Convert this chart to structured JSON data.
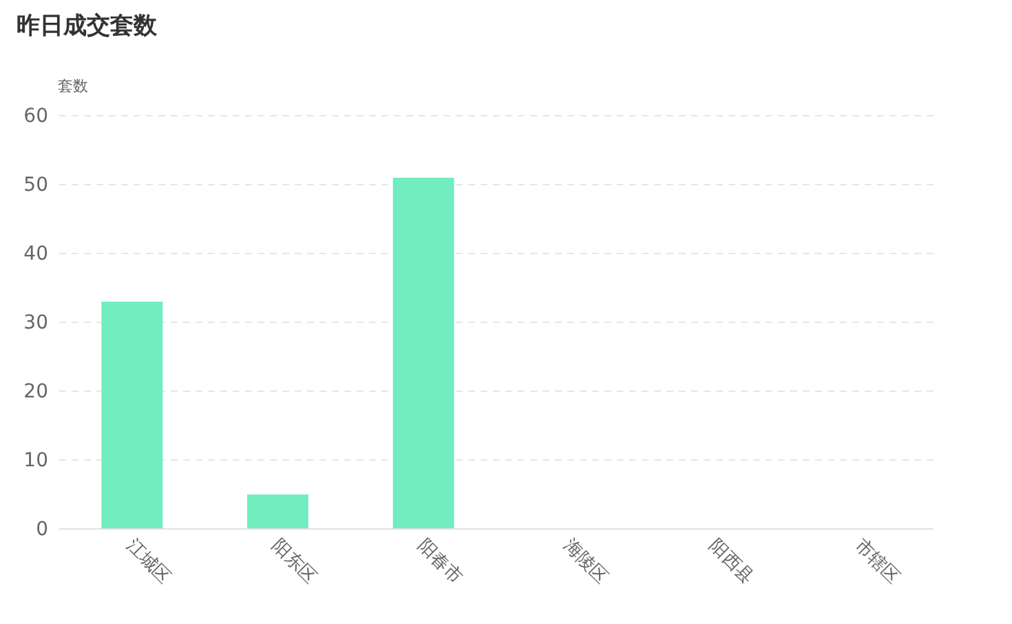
{
  "chart_data": {
    "type": "bar",
    "title": "昨日成交套数",
    "ylabel": "套数",
    "categories": [
      "江城区",
      "阳东区",
      "阳春市",
      "海陵区",
      "阳西县",
      "市辖区"
    ],
    "values": [
      33,
      5,
      51,
      0,
      0,
      0
    ],
    "color": "#72edbf",
    "ylim": [
      0,
      60
    ],
    "yticks": [
      0,
      10,
      20,
      30,
      40,
      50,
      60
    ],
    "grid": "y"
  }
}
